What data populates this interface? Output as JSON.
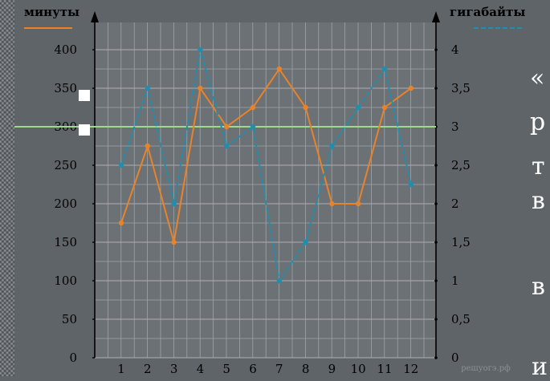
{
  "chart_data": {
    "type": "line",
    "categories": [
      "1",
      "2",
      "3",
      "4",
      "5",
      "6",
      "7",
      "8",
      "9",
      "10",
      "11",
      "12"
    ],
    "left_axis_label": "минуты",
    "right_axis_label": "гигабайты",
    "left_ylim": [
      0,
      400
    ],
    "right_ylim": [
      0,
      4
    ],
    "left_ticks": [
      "0",
      "50",
      "100",
      "150",
      "200",
      "250",
      "300",
      "350",
      "400"
    ],
    "right_ticks": [
      "0",
      "0,5",
      "1",
      "1,5",
      "2",
      "2,5",
      "3",
      "3,5",
      "4"
    ],
    "grid": true,
    "reference_line": {
      "value": 300,
      "axis": "left",
      "color": "#9fd88f"
    },
    "series": [
      {
        "name": "минуты",
        "axis": "left",
        "color": "#e8832a",
        "values": [
          175,
          275,
          150,
          350,
          300,
          325,
          375,
          325,
          200,
          200,
          325,
          350
        ]
      },
      {
        "name": "гигабайты",
        "axis": "right",
        "color": "#1f8fb0",
        "values": [
          2.5,
          3.5,
          2.0,
          4.0,
          2.75,
          3.0,
          1.0,
          1.5,
          2.75,
          3.25,
          3.75,
          2.25
        ]
      }
    ],
    "watermark": "решуогэ.рф"
  },
  "side_text": {
    "line1": "«",
    "line2": "р",
    "line3": "т",
    "line4": "в",
    "line5": "в",
    "line6": "и"
  },
  "colors": {
    "background": "#5f6468",
    "plot_background": "#6c7176",
    "grid": "#9ea4a8",
    "text": "#000000"
  }
}
